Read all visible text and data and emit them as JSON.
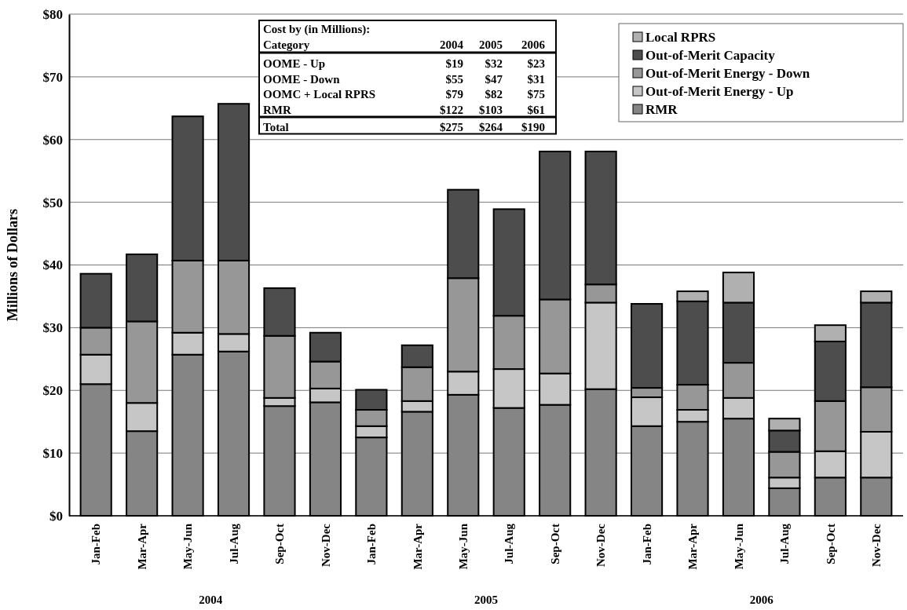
{
  "chart_data": {
    "type": "bar",
    "stacked": true,
    "ylabel": "Millions of Dollars",
    "categories": [
      "Jan-Feb",
      "Mar-Apr",
      "May-Jun",
      "Jul-Aug",
      "Sep-Oct",
      "Nov-Dec",
      "Jan-Feb",
      "Mar-Apr",
      "May-Jun",
      "Jul-Aug",
      "Sep-Oct",
      "Nov-Dec",
      "Jan-Feb",
      "Mar-Apr",
      "May-Jun",
      "Jul-Aug",
      "Sep-Oct",
      "Nov-Dec"
    ],
    "series": [
      {
        "name": "RMR",
        "color": "#858585",
        "values": [
          21,
          13.5,
          25.7,
          26.2,
          17.5,
          18.1,
          12.5,
          16.6,
          19.3,
          17.2,
          17.7,
          20.2,
          14.3,
          15,
          15.5,
          4.4,
          6.1,
          6.1
        ]
      },
      {
        "name": "Out-of-Merit Energy - Up",
        "color": "#c6c6c6",
        "values": [
          4.7,
          4.5,
          3.5,
          2.8,
          1.3,
          2.2,
          1.8,
          1.7,
          3.7,
          6.2,
          5,
          13.8,
          4.6,
          1.9,
          3.3,
          1.7,
          4.2,
          7.3
        ]
      },
      {
        "name": "Out-of-Merit Energy - Down",
        "color": "#979797",
        "values": [
          4.3,
          13,
          11.5,
          11.7,
          9.9,
          4.3,
          2.6,
          5.4,
          14.9,
          8.5,
          11.8,
          2.9,
          1.5,
          4,
          5.6,
          4.1,
          8,
          7.1
        ]
      },
      {
        "name": "Out-of-Merit Capacity",
        "color": "#4d4d4d",
        "values": [
          8.6,
          10.7,
          23,
          25,
          7.6,
          4.6,
          3.2,
          3.5,
          14.1,
          17,
          23.6,
          21.2,
          13.4,
          13.3,
          9.6,
          3.4,
          9.5,
          13.5
        ]
      },
      {
        "name": "Local RPRS",
        "color": "#b0b0b0",
        "values": [
          0,
          0,
          0,
          0,
          0,
          0,
          0,
          0,
          0,
          0,
          0,
          0,
          0,
          1.6,
          4.8,
          1.9,
          2.6,
          1.8
        ]
      }
    ],
    "ylim": [
      0,
      80
    ],
    "yticks": [
      {
        "value": 0,
        "label": "$0"
      },
      {
        "value": 10,
        "label": "$10"
      },
      {
        "value": 20,
        "label": "$20"
      },
      {
        "value": 30,
        "label": "$30"
      },
      {
        "value": 40,
        "label": "$40"
      },
      {
        "value": 50,
        "label": "$50"
      },
      {
        "value": 60,
        "label": "$60"
      },
      {
        "value": 70,
        "label": "$70"
      },
      {
        "value": 80,
        "label": "$80"
      }
    ],
    "grid": "y",
    "legend": "top right",
    "annotations": [
      "Cost by (in Millions):",
      "Category",
      "2004",
      "2005",
      "2006",
      "OOME - Up",
      "$19",
      "$32",
      "$23",
      "OOME - Down",
      "$55",
      "$47",
      "$31",
      "OOMC + Local RPRS",
      "$79",
      "$82",
      "$75",
      "RMR",
      "$122",
      "$103",
      "$61",
      "Total",
      "$275",
      "$264",
      "$190",
      "2004",
      "2005",
      "2006"
    ]
  }
}
